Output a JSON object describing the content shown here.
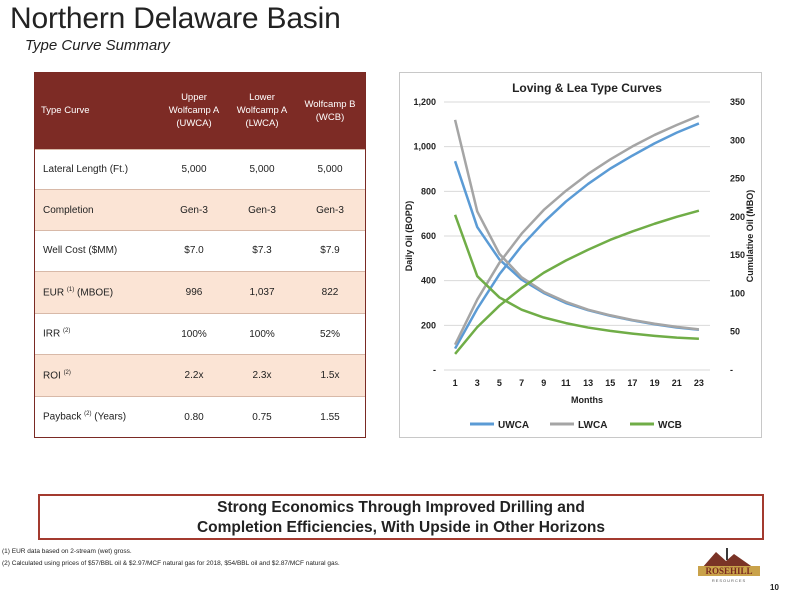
{
  "page": {
    "title": "Northern Delaware Basin",
    "subtitle": "Type Curve Summary",
    "page_number": "10"
  },
  "table": {
    "headers": [
      "Type Curve",
      "Upper Wolfcamp A (UWCA)",
      "Lower Wolfcamp A (LWCA)",
      "Wolfcamp B (WCB)"
    ],
    "rows": [
      {
        "label": "Lateral Length (Ft.)",
        "sup": "",
        "suffix": "",
        "values": [
          "5,000",
          "5,000",
          "5,000"
        ]
      },
      {
        "label": "Completion",
        "sup": "",
        "suffix": "",
        "values": [
          "Gen-3",
          "Gen-3",
          "Gen-3"
        ]
      },
      {
        "label": "Well Cost ($MM)",
        "sup": "",
        "suffix": "",
        "values": [
          "$7.0",
          "$7.3",
          "$7.9"
        ]
      },
      {
        "label": "EUR",
        "sup": "(1)",
        "suffix": " (MBOE)",
        "values": [
          "996",
          "1,037",
          "822"
        ]
      },
      {
        "label": "IRR",
        "sup": "(2)",
        "suffix": "",
        "values": [
          "100%",
          "100%",
          "52%"
        ]
      },
      {
        "label": "ROI",
        "sup": "(2)",
        "suffix": "",
        "values": [
          "2.2x",
          "2.3x",
          "1.5x"
        ]
      },
      {
        "label": "Payback",
        "sup": "(2)",
        "suffix": " (Years)",
        "values": [
          "0.80",
          "0.75",
          "1.55"
        ]
      }
    ]
  },
  "chart_data": {
    "type": "line",
    "title": "Loving & Lea Type Curves",
    "xlabel": "Months",
    "ylabel": "Daily Oil (BOPD)",
    "y2label": "Cumulative Oil (MBO)",
    "x": [
      1,
      3,
      5,
      7,
      9,
      11,
      13,
      15,
      17,
      19,
      21,
      23
    ],
    "x_ticks": [
      "1",
      "3",
      "5",
      "7",
      "9",
      "11",
      "13",
      "15",
      "17",
      "19",
      "21",
      "23"
    ],
    "ylim": [
      0,
      1200
    ],
    "y_ticks": [
      "-",
      "200",
      "400",
      "600",
      "800",
      "1,000",
      "1,200"
    ],
    "y2lim": [
      0,
      350
    ],
    "y2_ticks": [
      "-",
      "50",
      "100",
      "150",
      "200",
      "250",
      "300",
      "350"
    ],
    "series": [
      {
        "name": "UWCA",
        "color": "#5b9bd5",
        "daily": [
          935,
          640,
          495,
          405,
          345,
          300,
          268,
          243,
          222,
          205,
          190,
          180
        ],
        "cumulative": [
          28,
          80,
          125,
          162,
          193,
          220,
          243,
          263,
          280,
          296,
          310,
          322
        ]
      },
      {
        "name": "LWCA",
        "color": "#a5a5a5",
        "daily": [
          1120,
          710,
          520,
          415,
          350,
          305,
          270,
          245,
          224,
          207,
          193,
          182
        ],
        "cumulative": [
          33,
          92,
          140,
          178,
          209,
          234,
          256,
          275,
          292,
          307,
          320,
          332
        ]
      },
      {
        "name": "WCB",
        "color": "#70ad47",
        "daily": [
          695,
          420,
          325,
          270,
          235,
          210,
          190,
          175,
          163,
          153,
          145,
          140
        ],
        "cumulative": [
          21,
          56,
          84,
          107,
          127,
          143,
          157,
          170,
          181,
          191,
          200,
          208
        ]
      }
    ],
    "legend_position": "bottom",
    "grid": true
  },
  "banner": {
    "line1": "Strong Economics Through Improved Drilling and",
    "line2": "Completion Efficiencies, With Upside in Other Horizons"
  },
  "footnotes": {
    "fn1": "(1) EUR data based on 2-stream (wet) gross.",
    "fn2": "(2) Calculated using prices of $57/BBL oil & $2.97/MCF natural gas for 2018, $54/BBL oil and $2.87/MCF natural gas."
  },
  "logo": {
    "text": "ROSEHILL",
    "subtext": "RESOURCES"
  }
}
